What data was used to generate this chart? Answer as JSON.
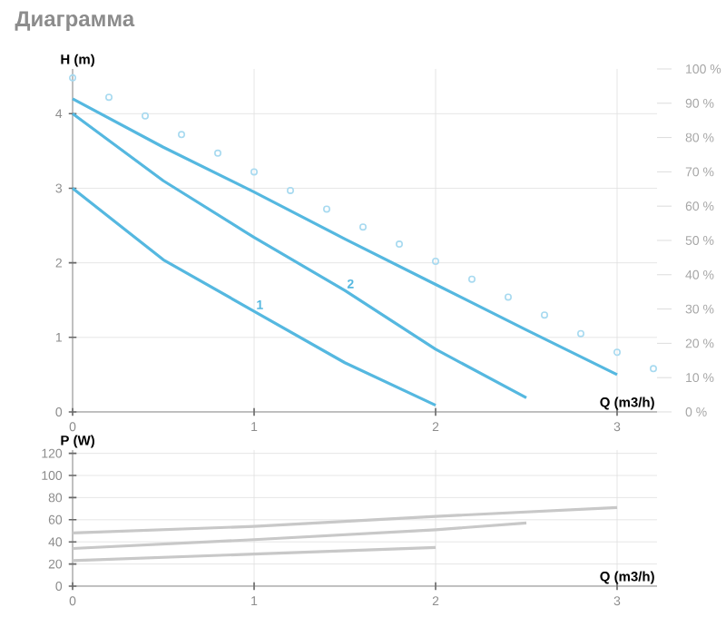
{
  "chart_data": [
    {
      "type": "line",
      "title": "Диаграмма",
      "xlabel": "Q (m3/h)",
      "ylabel": "H (m)",
      "xlim": [
        0,
        3.22
      ],
      "ylim": [
        0,
        4.6
      ],
      "xticks": [
        0,
        1,
        2,
        3
      ],
      "yticks": [
        0,
        1,
        2,
        3,
        4
      ],
      "y2lim": [
        0,
        100
      ],
      "y2ticks": [
        {
          "value": 0,
          "label": "0 %"
        },
        {
          "value": 10,
          "label": "10 %"
        },
        {
          "value": 20,
          "label": "20 %"
        },
        {
          "value": 30,
          "label": "30 %"
        },
        {
          "value": 40,
          "label": "40 %"
        },
        {
          "value": 50,
          "label": "50 %"
        },
        {
          "value": 60,
          "label": "60 %"
        },
        {
          "value": 70,
          "label": "70 %"
        },
        {
          "value": 80,
          "label": "80 %"
        },
        {
          "value": 90,
          "label": "90 %"
        },
        {
          "value": 100,
          "label": "100 %"
        }
      ],
      "grid": true,
      "series": [
        {
          "type": "scatter",
          "marker": "circle",
          "color": "#a8daf0",
          "x": [
            0,
            0.2,
            0.4,
            0.6,
            0.8,
            1.0,
            1.2,
            1.4,
            1.6,
            1.8,
            2.0,
            2.2,
            2.4,
            2.6,
            2.8,
            3.0,
            3.2
          ],
          "values": [
            4.48,
            4.22,
            3.97,
            3.72,
            3.47,
            3.22,
            2.97,
            2.72,
            2.48,
            2.25,
            2.02,
            1.78,
            1.54,
            1.3,
            1.05,
            0.8,
            0.58
          ]
        },
        {
          "color": "#55b8e0",
          "x": [
            0,
            0.5,
            1,
            1.5,
            2,
            2.5,
            3
          ],
          "values": [
            4.2,
            3.55,
            2.95,
            2.32,
            1.71,
            1.1,
            0.5
          ]
        },
        {
          "name": "2",
          "color": "#55b8e0",
          "x": [
            0,
            0.5,
            1,
            1.5,
            2,
            2.5
          ],
          "values": [
            4.0,
            3.1,
            2.34,
            1.63,
            0.84,
            0.19
          ]
        },
        {
          "name": "1",
          "color": "#55b8e0",
          "x": [
            0,
            0.5,
            1,
            1.5,
            2
          ],
          "values": [
            3.0,
            2.04,
            1.35,
            0.66,
            0.09
          ]
        }
      ]
    },
    {
      "type": "line",
      "xlabel": "Q (m3/h)",
      "ylabel": "P (W)",
      "xlim": [
        0,
        3.22
      ],
      "ylim": [
        0,
        123
      ],
      "xticks": [
        0,
        1,
        2,
        3
      ],
      "yticks": [
        0,
        20,
        40,
        60,
        80,
        100,
        120
      ],
      "grid": true,
      "series": [
        {
          "color": "#c8c8c8",
          "x": [
            0,
            1,
            2,
            3
          ],
          "values": [
            48,
            54,
            63,
            71
          ]
        },
        {
          "color": "#c8c8c8",
          "x": [
            0,
            1,
            2,
            2.5
          ],
          "values": [
            34,
            42,
            51,
            57
          ]
        },
        {
          "color": "#c8c8c8",
          "x": [
            0,
            1,
            2
          ],
          "values": [
            23,
            29,
            35
          ]
        }
      ]
    }
  ]
}
